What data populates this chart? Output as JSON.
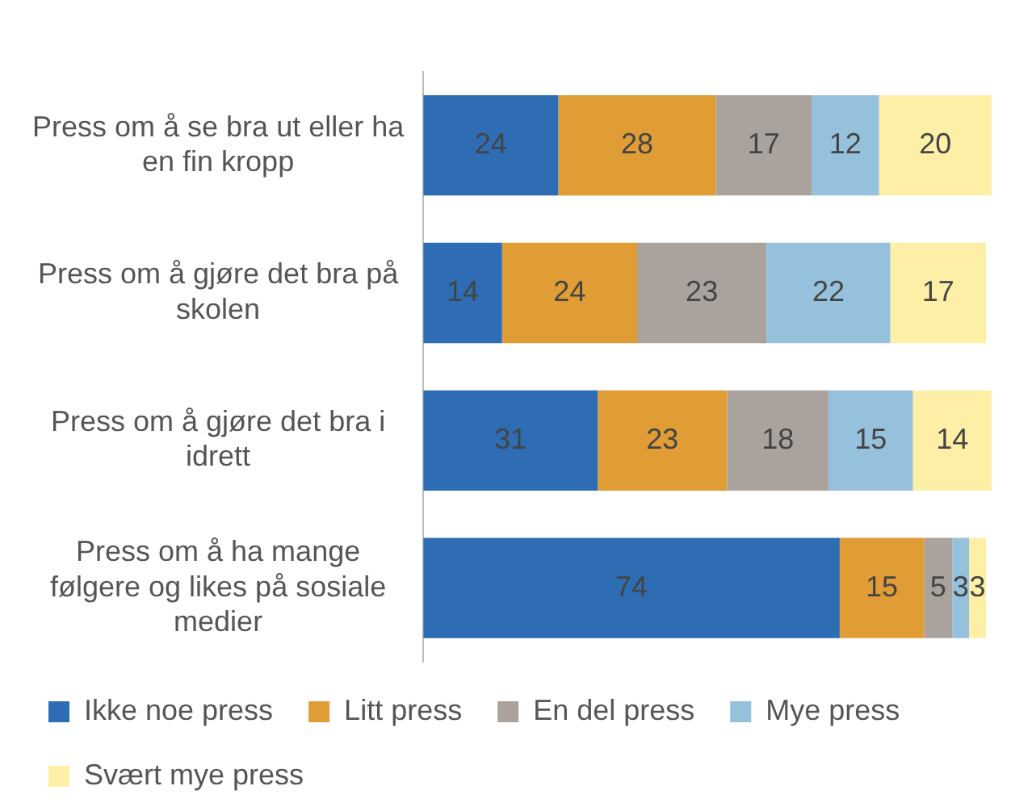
{
  "chart_data": {
    "type": "bar",
    "orientation": "horizontal",
    "stacked": true,
    "data_labels": true,
    "legend": "bottom",
    "categories": [
      "Press om å se bra ut eller ha en fin kropp",
      "Press om å gjøre det bra på skolen",
      "Press om å gjøre det bra i idrett",
      "Press om å ha mange følgere og likes på sosiale medier"
    ],
    "xlim": [
      0,
      101
    ],
    "series": [
      {
        "name": "Ikke noe press",
        "color": "#2e6db4",
        "values": [
          24,
          14,
          31,
          74
        ]
      },
      {
        "name": "Litt press",
        "color": "#e09c35",
        "values": [
          28,
          24,
          23,
          15
        ]
      },
      {
        "name": "En del press",
        "color": "#aaa39d",
        "values": [
          17,
          23,
          18,
          5
        ]
      },
      {
        "name": "Mye press",
        "color": "#96c1dc",
        "values": [
          12,
          22,
          15,
          3
        ]
      },
      {
        "name": "Svært mye press",
        "color": "#fdf0a6",
        "values": [
          20,
          17,
          14,
          3
        ]
      }
    ]
  }
}
